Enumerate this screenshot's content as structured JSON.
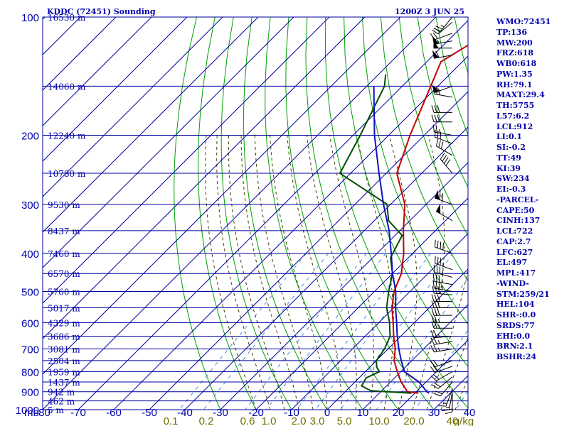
{
  "header": {
    "title": "KDDC (72451) Sounding",
    "time": "1200Z  3 JUN 25"
  },
  "colors": {
    "grid_blue": "#0000a0",
    "text_blue": "#0000aa",
    "dry_adiabat": "#00a000",
    "moist_adiabat": "#404000",
    "mixing_ratio": "#3a8ee0",
    "temperature": "#c00000",
    "dewpoint": "#004d00",
    "parcel": "#1010c0",
    "mixing_label": "#707000"
  },
  "chart_data": {
    "type": "line",
    "title": "KDDC (72451) Sounding",
    "diagram": "skew-T log-P",
    "y_axis": {
      "unit_label": "mb",
      "scale": "log",
      "range": [
        1000,
        100
      ],
      "tick_labels": [
        "100",
        "200",
        "300",
        "400",
        "500",
        "600",
        "700",
        "800",
        "900",
        "1000"
      ]
    },
    "x_axis": {
      "range": [
        -80,
        40
      ],
      "tick_labels": [
        "-80",
        "-70",
        "-60",
        "-50",
        "-40",
        "-30",
        "-20",
        "-10",
        "0",
        "10",
        "20",
        "30",
        "40"
      ],
      "skewed": true
    },
    "height_labels": [
      {
        "p": 100,
        "label": "16530 m"
      },
      {
        "p": 150,
        "label": "14060 m"
      },
      {
        "p": 200,
        "label": "12240 m"
      },
      {
        "p": 250,
        "label": "10780 m"
      },
      {
        "p": 300,
        "label": "9530 m"
      },
      {
        "p": 350,
        "label": "8437 m"
      },
      {
        "p": 400,
        "label": "7460 m"
      },
      {
        "p": 450,
        "label": "6570 m"
      },
      {
        "p": 500,
        "label": "5760 m"
      },
      {
        "p": 550,
        "label": "5017 m"
      },
      {
        "p": 600,
        "label": "4329 m"
      },
      {
        "p": 650,
        "label": "3686 m"
      },
      {
        "p": 700,
        "label": "3081 m"
      },
      {
        "p": 750,
        "label": "2504 m"
      },
      {
        "p": 800,
        "label": "1959 m"
      },
      {
        "p": 850,
        "label": "1437 m"
      },
      {
        "p": 900,
        "label": "942 m"
      },
      {
        "p": 950,
        "label": "462 m"
      },
      {
        "p": 1000,
        "label": "5 m"
      }
    ],
    "mixing_ratio_labels": [
      "0.1",
      "0.2",
      "0.6",
      "1.0",
      "2.0",
      "3.0",
      "5.0",
      "10.0",
      "20.0",
      "40",
      "g/kg"
    ],
    "series": [
      {
        "key": "temperature",
        "points": [
          [
            908,
            21
          ],
          [
            900,
            17.5
          ],
          [
            850,
            13
          ],
          [
            800,
            9
          ],
          [
            750,
            5
          ],
          [
            700,
            2
          ],
          [
            650,
            -2
          ],
          [
            600,
            -6
          ],
          [
            550,
            -10.5
          ],
          [
            500,
            -14.5
          ],
          [
            450,
            -17.5
          ],
          [
            400,
            -22.5
          ],
          [
            350,
            -29
          ],
          [
            300,
            -36
          ],
          [
            250,
            -47
          ],
          [
            200,
            -54
          ],
          [
            150,
            -62
          ],
          [
            130,
            -66
          ],
          [
            100,
            -58
          ]
        ]
      },
      {
        "key": "dewpoint",
        "points": [
          [
            908,
            19
          ],
          [
            895,
            7
          ],
          [
            870,
            3
          ],
          [
            830,
            2
          ],
          [
            800,
            4
          ],
          [
            780,
            2
          ],
          [
            750,
            0
          ],
          [
            700,
            -1
          ],
          [
            650,
            -3
          ],
          [
            600,
            -7
          ],
          [
            550,
            -12
          ],
          [
            500,
            -16
          ],
          [
            450,
            -20
          ],
          [
            410,
            -25
          ],
          [
            360,
            -28
          ],
          [
            330,
            -36
          ],
          [
            300,
            -41
          ],
          [
            250,
            -63
          ],
          [
            200,
            -68
          ],
          [
            150,
            -75
          ],
          [
            140,
            -78
          ]
        ]
      },
      {
        "key": "parcel",
        "points": [
          [
            908,
            24
          ],
          [
            900,
            23
          ],
          [
            850,
            18
          ],
          [
            800,
            11
          ],
          [
            750,
            7
          ],
          [
            700,
            3
          ],
          [
            650,
            -1
          ],
          [
            600,
            -5
          ],
          [
            550,
            -9.5
          ],
          [
            500,
            -14
          ],
          [
            450,
            -20
          ],
          [
            400,
            -26
          ],
          [
            350,
            -33
          ],
          [
            300,
            -42
          ],
          [
            250,
            -52
          ],
          [
            200,
            -64
          ],
          [
            150,
            -78
          ]
        ]
      }
    ],
    "wind_barbs": [
      {
        "p": 908,
        "dir": 180,
        "speed": 15
      },
      {
        "p": 900,
        "dir": 190,
        "speed": 15
      },
      {
        "p": 885,
        "dir": 200,
        "speed": 15
      },
      {
        "p": 850,
        "dir": 220,
        "speed": 20
      },
      {
        "p": 825,
        "dir": 230,
        "speed": 20
      },
      {
        "p": 800,
        "dir": 240,
        "speed": 20
      },
      {
        "p": 775,
        "dir": 250,
        "speed": 20
      },
      {
        "p": 750,
        "dir": 250,
        "speed": 20
      },
      {
        "p": 700,
        "dir": 260,
        "speed": 25
      },
      {
        "p": 670,
        "dir": 260,
        "speed": 25
      },
      {
        "p": 650,
        "dir": 265,
        "speed": 25
      },
      {
        "p": 620,
        "dir": 270,
        "speed": 25
      },
      {
        "p": 600,
        "dir": 270,
        "speed": 25
      },
      {
        "p": 575,
        "dir": 270,
        "speed": 30
      },
      {
        "p": 550,
        "dir": 270,
        "speed": 30
      },
      {
        "p": 530,
        "dir": 270,
        "speed": 30
      },
      {
        "p": 510,
        "dir": 275,
        "speed": 30
      },
      {
        "p": 500,
        "dir": 280,
        "speed": 35
      },
      {
        "p": 480,
        "dir": 280,
        "speed": 35
      },
      {
        "p": 460,
        "dir": 285,
        "speed": 35
      },
      {
        "p": 440,
        "dir": 290,
        "speed": 35
      },
      {
        "p": 400,
        "dir": 290,
        "speed": 40
      },
      {
        "p": 330,
        "dir": 300,
        "speed": 50
      },
      {
        "p": 300,
        "dir": 290,
        "speed": 70
      },
      {
        "p": 250,
        "dir": 320,
        "speed": 40
      },
      {
        "p": 225,
        "dir": 300,
        "speed": 30
      },
      {
        "p": 210,
        "dir": 290,
        "speed": 30
      },
      {
        "p": 200,
        "dir": 280,
        "speed": 25
      },
      {
        "p": 185,
        "dir": 270,
        "speed": 30
      },
      {
        "p": 175,
        "dir": 270,
        "speed": 30
      },
      {
        "p": 160,
        "dir": 280,
        "speed": 25
      },
      {
        "p": 150,
        "dir": 250,
        "speed": 55
      },
      {
        "p": 125,
        "dir": 260,
        "speed": 60
      },
      {
        "p": 120,
        "dir": 270,
        "speed": 50
      },
      {
        "p": 115,
        "dir": 260,
        "speed": 55
      },
      {
        "p": 110,
        "dir": 250,
        "speed": 20
      },
      {
        "p": 103,
        "dir": 230,
        "speed": 20
      },
      {
        "p": 100,
        "dir": 220,
        "speed": 25
      }
    ]
  },
  "indices": [
    "WMO:72451",
    "TP:136",
    "MW:200",
    "FRZ:618",
    "WB0:618",
    "PW:1.35",
    "RH:79.1",
    "MAXT:29.4",
    "TH:5755",
    "L57:6.2",
    "LCL:912",
    "LI:0.1",
    "SI:-0.2",
    "TT:49",
    "KI:39",
    "SW:234",
    "EI:-0.3",
    "-PARCEL-",
    "CAPE:50",
    "CINH:137",
    "LCL:722",
    "CAP:2.7",
    "LFC:627",
    "EL:497",
    "MPL:417",
    "-WIND-",
    "STM:259/21",
    "HEL:104",
    "SHR-:0.0",
    "SRDS:77",
    "EHI:0.0",
    "BRN:2.1",
    "BSHR:24"
  ]
}
